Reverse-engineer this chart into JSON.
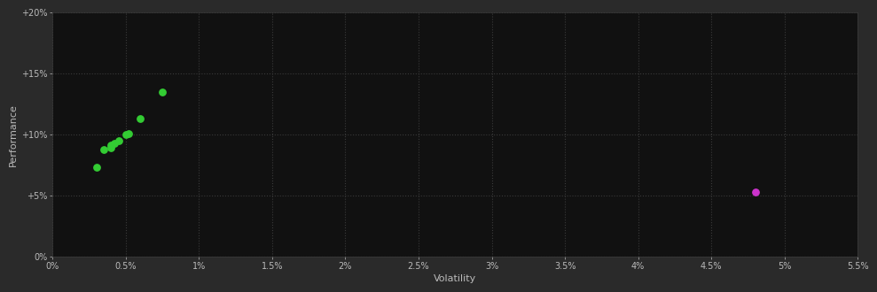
{
  "background_color": "#2a2a2a",
  "plot_bg_color": "#111111",
  "grid_color": "#3a3a3a",
  "text_color": "#bbbbbb",
  "xlabel": "Volatility",
  "ylabel": "Performance",
  "xlim": [
    0,
    0.055
  ],
  "ylim": [
    0,
    0.2
  ],
  "xticks": [
    0.0,
    0.005,
    0.01,
    0.015,
    0.02,
    0.025,
    0.03,
    0.035,
    0.04,
    0.045,
    0.05,
    0.055
  ],
  "xtick_labels": [
    "0%",
    "0.5%",
    "1%",
    "1.5%",
    "2%",
    "2.5%",
    "3%",
    "3.5%",
    "4%",
    "4.5%",
    "5%",
    "5.5%"
  ],
  "yticks": [
    0.0,
    0.05,
    0.1,
    0.15,
    0.2
  ],
  "ytick_labels": [
    "0%",
    "+5%",
    "+10%",
    "+15%",
    "+20%"
  ],
  "green_points": [
    [
      0.003,
      0.073
    ],
    [
      0.0035,
      0.088
    ],
    [
      0.004,
      0.089
    ],
    [
      0.004,
      0.091
    ],
    [
      0.0042,
      0.093
    ],
    [
      0.0045,
      0.095
    ],
    [
      0.005,
      0.1
    ],
    [
      0.0052,
      0.101
    ],
    [
      0.006,
      0.113
    ],
    [
      0.0075,
      0.135
    ]
  ],
  "magenta_points": [
    [
      0.048,
      0.053
    ]
  ],
  "green_color": "#33cc33",
  "magenta_color": "#cc33cc",
  "dot_size": 28,
  "font_size_ticks": 7,
  "font_size_label": 8
}
